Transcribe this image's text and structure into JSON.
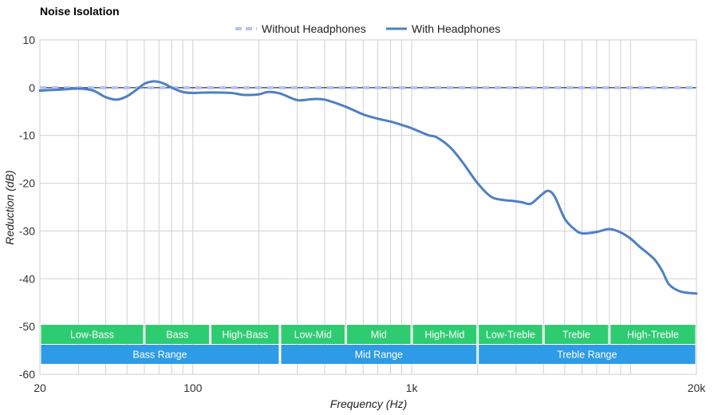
{
  "chart_data": {
    "type": "line",
    "title": "Noise Isolation",
    "xlabel": "Frequency (Hz)",
    "ylabel": "Reduction (dB)",
    "x_scale": "log",
    "xlim": [
      20,
      20000
    ],
    "ylim": [
      -60,
      10
    ],
    "x_ticks": [
      {
        "value": 20,
        "label": "20"
      },
      {
        "value": 100,
        "label": "100"
      },
      {
        "value": 1000,
        "label": "1k"
      },
      {
        "value": 20000,
        "label": "20k"
      }
    ],
    "y_ticks": [
      10,
      0,
      -10,
      -20,
      -30,
      -40,
      -50,
      -60
    ],
    "grid": true,
    "legend_position": "top",
    "series": [
      {
        "name": "Without Headphones",
        "style": "dashed",
        "color": "#b3c3f7",
        "x": [
          20,
          20000
        ],
        "y": [
          0,
          0
        ]
      },
      {
        "name": "With Headphones",
        "style": "solid",
        "color": "#4e80c4",
        "x": [
          20,
          25,
          30,
          35,
          40,
          45,
          50,
          55,
          60,
          65,
          70,
          75,
          80,
          90,
          100,
          120,
          150,
          170,
          200,
          220,
          250,
          300,
          350,
          400,
          500,
          600,
          700,
          800,
          900,
          1000,
          1100,
          1200,
          1300,
          1500,
          1700,
          2000,
          2300,
          2600,
          2900,
          3200,
          3500,
          3900,
          4200,
          4500,
          5000,
          5500,
          6000,
          7000,
          8000,
          9000,
          10000,
          11000,
          12000,
          13000,
          14000,
          15000,
          17000,
          20000
        ],
        "y": [
          -0.6,
          -0.4,
          -0.2,
          -0.6,
          -2.0,
          -2.5,
          -1.8,
          -0.5,
          0.8,
          1.3,
          1.2,
          0.7,
          0.0,
          -0.9,
          -1.1,
          -1.0,
          -1.1,
          -1.5,
          -1.4,
          -0.9,
          -1.2,
          -2.6,
          -2.4,
          -2.5,
          -4.0,
          -5.6,
          -6.5,
          -7.1,
          -7.8,
          -8.5,
          -9.3,
          -10.0,
          -10.4,
          -12.5,
          -15.5,
          -20.0,
          -22.8,
          -23.5,
          -23.7,
          -24.0,
          -24.3,
          -22.5,
          -21.6,
          -22.8,
          -27.4,
          -29.5,
          -30.5,
          -30.2,
          -29.6,
          -30.3,
          -31.6,
          -33.3,
          -34.7,
          -36.2,
          -38.5,
          -41.2,
          -42.7,
          -43.1
        ]
      }
    ],
    "bands": {
      "sub": [
        {
          "label": "Low-Bass",
          "from": 20,
          "to": 60
        },
        {
          "label": "Bass",
          "from": 60,
          "to": 120
        },
        {
          "label": "High-Bass",
          "from": 120,
          "to": 250
        },
        {
          "label": "Low-Mid",
          "from": 250,
          "to": 500
        },
        {
          "label": "Mid",
          "from": 500,
          "to": 1000
        },
        {
          "label": "High-Mid",
          "from": 1000,
          "to": 2000
        },
        {
          "label": "Low-Treble",
          "from": 2000,
          "to": 4000
        },
        {
          "label": "Treble",
          "from": 4000,
          "to": 8000
        },
        {
          "label": "High-Treble",
          "from": 8000,
          "to": 20000
        }
      ],
      "main": [
        {
          "label": "Bass Range",
          "from": 20,
          "to": 250
        },
        {
          "label": "Mid Range",
          "from": 250,
          "to": 2000
        },
        {
          "label": "Treble Range",
          "from": 2000,
          "to": 20000
        }
      ],
      "sub_color": "#2ecc71",
      "main_color": "#2e9be6"
    }
  }
}
